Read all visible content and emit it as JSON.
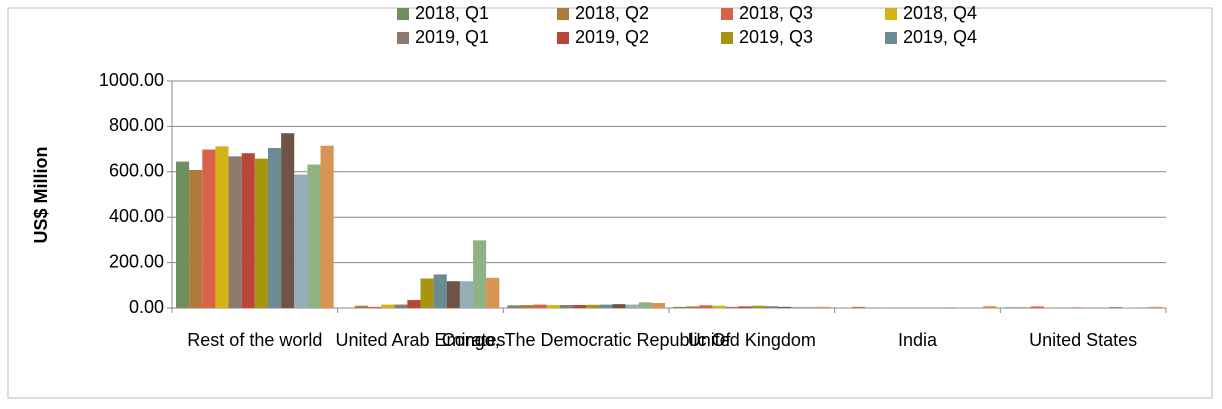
{
  "chart_data": {
    "type": "bar",
    "y_label": "US$ Million",
    "categories": [
      "Rest of the world",
      "United Arab Emirates",
      "Congo, The Democratic Republic Of",
      "United Kingdom",
      "India",
      "United States"
    ],
    "series": [
      {
        "name": "2018, Q1",
        "color": "#6f8f5f",
        "values": [
          645,
          2,
          12,
          5,
          1,
          3
        ]
      },
      {
        "name": "2018, Q2",
        "color": "#b07a3a",
        "values": [
          608,
          10,
          13,
          7,
          5,
          3
        ]
      },
      {
        "name": "2018, Q3",
        "color": "#d9634a",
        "values": [
          698,
          5,
          15,
          12,
          1,
          7
        ]
      },
      {
        "name": "2018, Q4",
        "color": "#d4b414",
        "values": [
          712,
          15,
          13,
          10,
          1,
          3
        ]
      },
      {
        "name": "2019, Q1",
        "color": "#8c7a6e",
        "values": [
          668,
          15,
          13,
          5,
          1,
          2
        ]
      },
      {
        "name": "2019, Q2",
        "color": "#b8473a",
        "values": [
          682,
          35,
          13,
          7,
          1,
          2
        ]
      },
      {
        "name": "2019, Q3",
        "color": "#a89410",
        "values": [
          658,
          130,
          14,
          10,
          1,
          2
        ]
      },
      {
        "name": "2019, Q4",
        "color": "#6b8c94",
        "values": [
          705,
          148,
          15,
          8,
          1,
          2
        ]
      },
      {
        "color": "#6e5446",
        "values": [
          770,
          118,
          17,
          5,
          1,
          3
        ]
      },
      {
        "color": "#93aeb8",
        "values": [
          588,
          118,
          15,
          5,
          1,
          2
        ]
      },
      {
        "color": "#8fb285",
        "values": [
          632,
          298,
          25,
          5,
          1,
          3
        ]
      },
      {
        "color": "#d99352",
        "values": [
          715,
          133,
          22,
          5,
          8,
          5
        ]
      }
    ],
    "ylim": [
      0,
      1000
    ],
    "yticks": [
      {
        "value": 0,
        "label": "0.00"
      },
      {
        "value": 200,
        "label": "200.00"
      },
      {
        "value": 400,
        "label": "400.00"
      },
      {
        "value": 600,
        "label": "600.00"
      },
      {
        "value": 800,
        "label": "800.00"
      },
      {
        "value": 1000,
        "label": "1000.00"
      }
    ],
    "grid": true
  }
}
